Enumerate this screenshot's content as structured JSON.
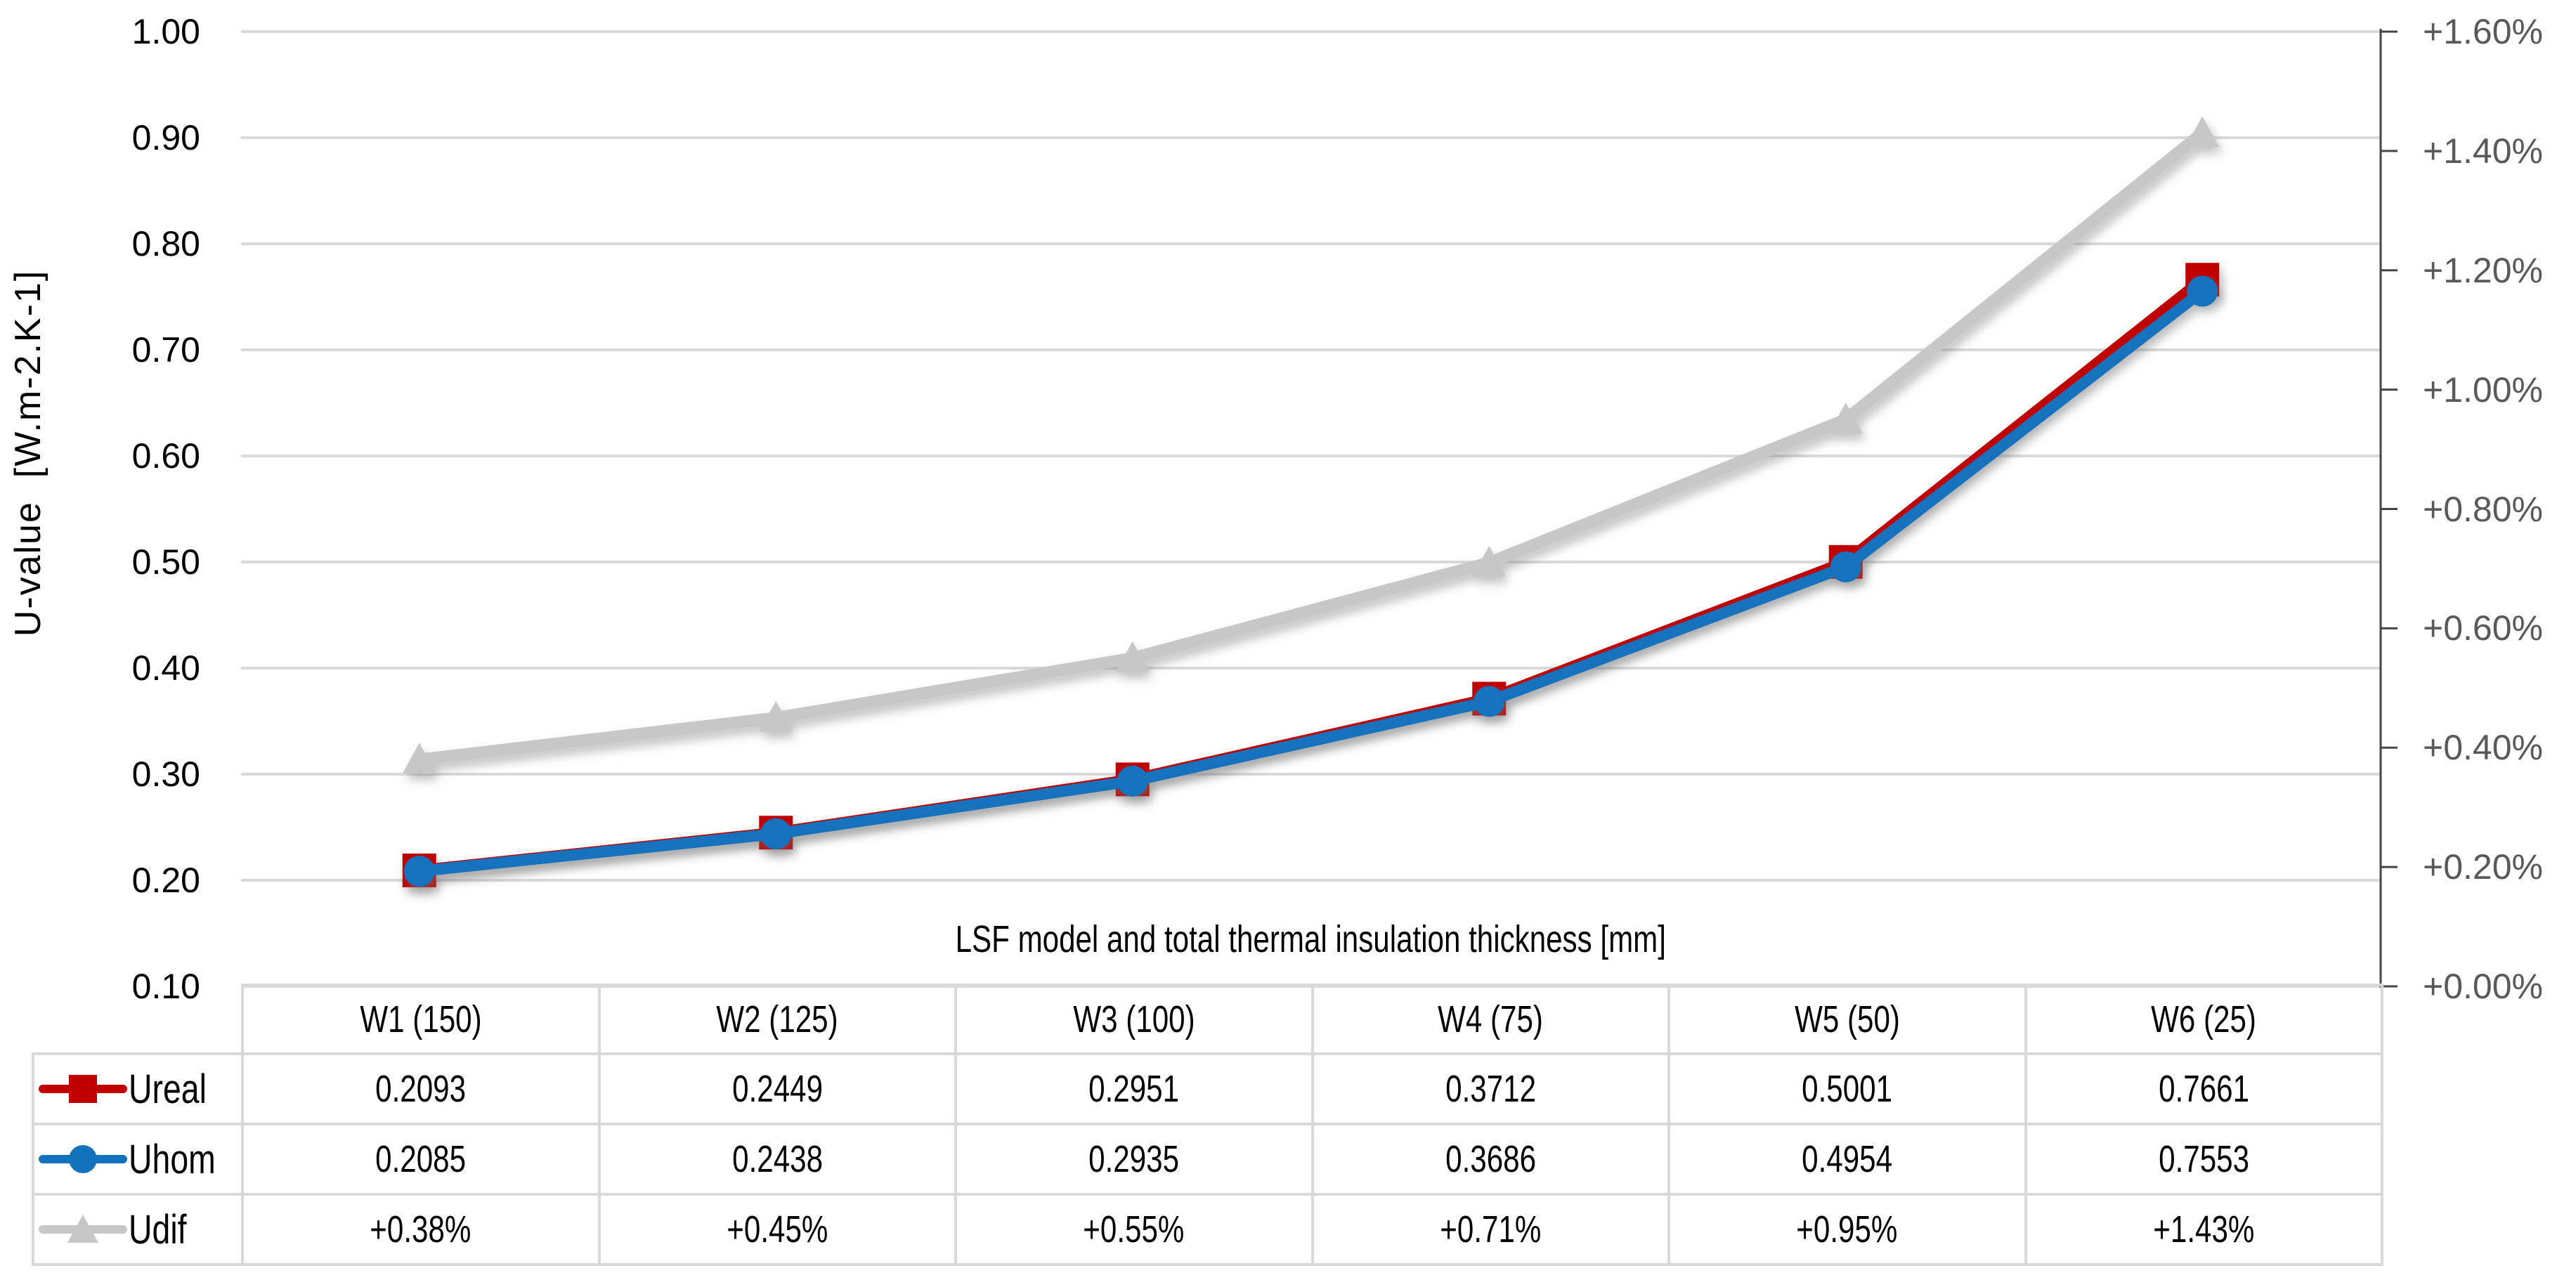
{
  "chart_data": {
    "type": "line",
    "categories": [
      "W1 (150)",
      "W2 (125)",
      "W3 (100)",
      "W4 (75)",
      "W5 (50)",
      "W6 (25)"
    ],
    "series": [
      {
        "name": "Ureal",
        "marker": "square",
        "color": "#C00000",
        "axis": "left",
        "values": [
          0.2093,
          0.2449,
          0.2951,
          0.3712,
          0.5001,
          0.7661
        ],
        "display_values": [
          "0.2093",
          "0.2449",
          "0.2951",
          "0.3712",
          "0.5001",
          "0.7661"
        ]
      },
      {
        "name": "Uhom",
        "marker": "circle",
        "color": "#1272BC",
        "axis": "left",
        "values": [
          0.2085,
          0.2438,
          0.2935,
          0.3686,
          0.4954,
          0.7553
        ],
        "display_values": [
          "0.2085",
          "0.2438",
          "0.2935",
          "0.3686",
          "0.4954",
          "0.7553"
        ]
      },
      {
        "name": "Udif",
        "marker": "triangle",
        "color": "#C7C7C7",
        "axis": "right",
        "values": [
          0.38,
          0.45,
          0.55,
          0.71,
          0.95,
          1.43
        ],
        "display_values": [
          "+0.38%",
          "+0.45%",
          "+0.55%",
          "+0.71%",
          "+0.95%",
          "+1.43%"
        ]
      }
    ],
    "xlabel": "LSF model and total thermal insulation thickness [mm]",
    "ylabel": "U-value  [W.m-2.K-1]",
    "left_axis": {
      "min": 0.1,
      "max": 1.0,
      "step": 0.1,
      "tick_labels": [
        "1.00",
        "0.90",
        "0.80",
        "0.70",
        "0.60",
        "0.50",
        "0.40",
        "0.30",
        "0.20",
        "0.10"
      ]
    },
    "right_axis": {
      "min": 0.0,
      "max": 1.6,
      "step": 0.2,
      "tick_labels": [
        "+1.60%",
        "+1.40%",
        "+1.20%",
        "+1.00%",
        "+0.80%",
        "+0.60%",
        "+0.40%",
        "+0.20%",
        "+0.00%"
      ]
    },
    "grid": true,
    "legend_position": "table-left-column"
  },
  "colors": {
    "gridline": "#D9D9D9",
    "right_axis_line": "#454545",
    "right_axis_text": "#595959",
    "left_axis_text": "#000000",
    "table_border": "#D9D9D9",
    "background": "#FFFFFF"
  }
}
